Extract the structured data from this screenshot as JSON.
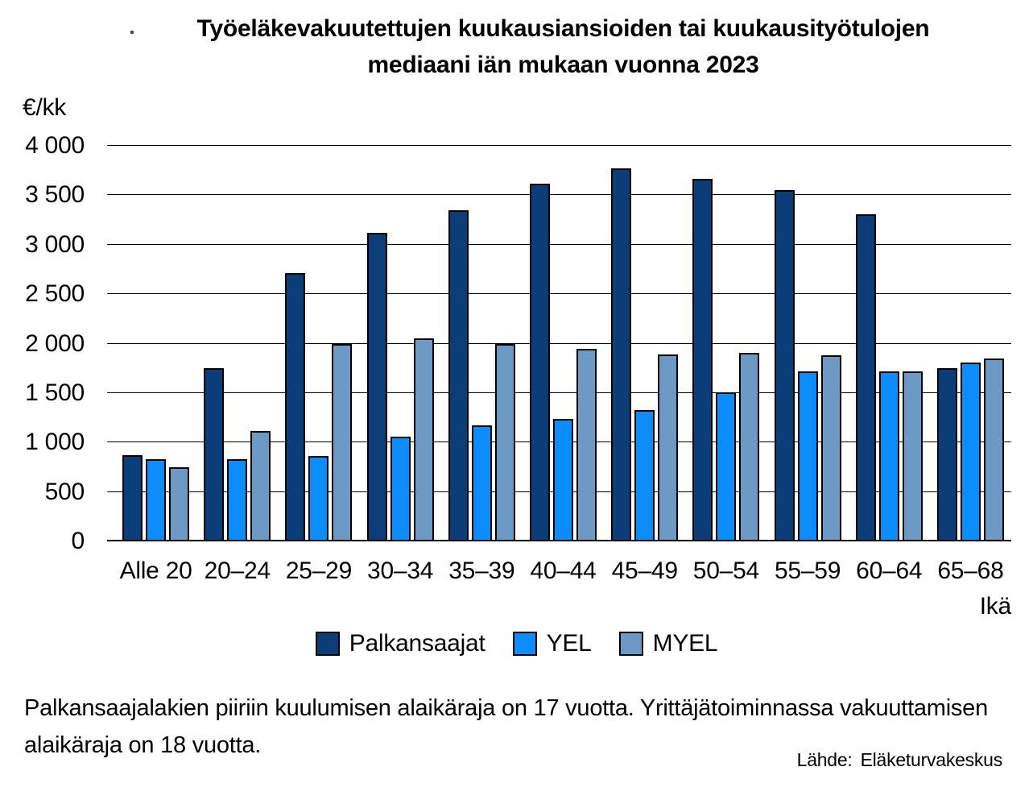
{
  "title": {
    "line1": "Työeläkevakuutettujen kuukausiansioiden tai kuukausityötulojen",
    "line2": "mediaani iän mukaan vuonna 2023"
  },
  "y_axis": {
    "unit_label": "€/kk"
  },
  "x_axis": {
    "label": "Ikä"
  },
  "footnote": {
    "text": "Palkansaajalakien piiriin kuulumisen alaikäraja on 17 vuotta. Yrittäjätoiminnassa vakuuttamisen alaikäraja on 18 vuotta."
  },
  "source": {
    "label": "Lähde:",
    "value": "Eläketurvakeskus"
  },
  "colors": {
    "palkansaajat": "#0B3E78",
    "yel": "#0D8CFC",
    "myel": "#6D9AC4",
    "bar_border": "#000000",
    "gridline": "#000000"
  },
  "chart_data": {
    "type": "bar",
    "title": "Työeläkevakuutettujen kuukausiansioiden tai kuukausityötulojen mediaani iän mukaan vuonna 2023",
    "xlabel": "Ikä",
    "ylabel": "€/kk",
    "ylim": [
      0,
      4000
    ],
    "grid": true,
    "legend_position": "bottom",
    "categories": [
      "Alle 20",
      "20–24",
      "25–29",
      "30–34",
      "35–39",
      "40–44",
      "45–49",
      "50–54",
      "55–59",
      "60–64",
      "65–68"
    ],
    "series": [
      {
        "name": "Palkansaajat",
        "color": "#0B3E78",
        "values": [
          870,
          1750,
          2710,
          3120,
          3350,
          3620,
          3770,
          3670,
          3550,
          3310,
          1750
        ]
      },
      {
        "name": "YEL",
        "color": "#0D8CFC",
        "values": [
          830,
          830,
          860,
          1060,
          1170,
          1240,
          1330,
          1510,
          1720,
          1720,
          1810
        ]
      },
      {
        "name": "MYEL",
        "color": "#6D9AC4",
        "values": [
          750,
          1120,
          2000,
          2050,
          2000,
          1950,
          1890,
          1910,
          1880,
          1720,
          1850
        ]
      }
    ],
    "yticks": [
      {
        "value": 4000,
        "label": "4 000"
      },
      {
        "value": 3500,
        "label": "3 500"
      },
      {
        "value": 3000,
        "label": "3 000"
      },
      {
        "value": 2500,
        "label": "2 500"
      },
      {
        "value": 2000,
        "label": "2 000"
      },
      {
        "value": 1500,
        "label": "1 500"
      },
      {
        "value": 1000,
        "label": "1 000"
      },
      {
        "value": 500,
        "label": "500"
      },
      {
        "value": 0,
        "label": "0"
      }
    ]
  }
}
